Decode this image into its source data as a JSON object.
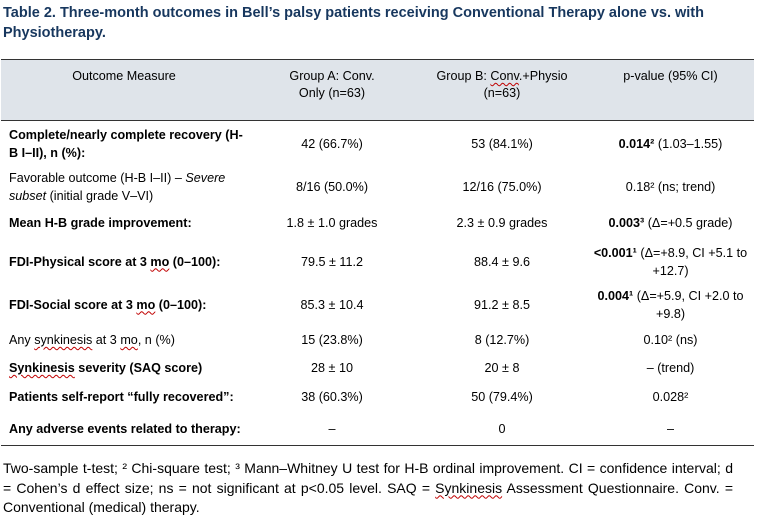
{
  "title": "Table 2. Three-month outcomes in Bell’s palsy patients receiving Conventional Therapy alone vs. with Physiotherapy.",
  "columns": {
    "measure": "Outcome Measure",
    "group_a_line1": "Group A: Conv.",
    "group_a_line2": "Only (n=63)",
    "group_b_line1_pre": "Group B: ",
    "group_b_line1_sq": "Conv",
    "group_b_line1_post": ".+Physio",
    "group_b_line2": "(n=63)",
    "pvalue": "p-value (95% CI)"
  },
  "rows": {
    "r1": {
      "measure": "Complete/nearly complete recovery (H-B I–II), n (%):",
      "a": "42 (66.7%)",
      "b": "53 (84.1%)",
      "p_bold": "0.014²",
      "p_rest": " (1.03–1.55)"
    },
    "r2": {
      "measure_pre": "Favorable outcome (H-B I–II) – ",
      "measure_em1": "Severe",
      "measure_em2": "subset",
      "measure_post": " (initial grade V–VI)",
      "a": "8/16 (50.0%)",
      "b": "12/16 (75.0%)",
      "p_rest": "0.18² (ns; trend)"
    },
    "r3": {
      "measure": "Mean H-B grade improvement:",
      "a": "1.8 ± 1.0 grades",
      "b": "2.3 ± 0.9 grades",
      "p_bold": "0.003³",
      "p_rest": " (Δ=+0.5 grade)"
    },
    "r4": {
      "measure_pre": "FDI-Physical score at 3 ",
      "measure_sq": "mo",
      "measure_post": " (0–100):",
      "a": "79.5 ± 11.2",
      "b": "88.4 ± 9.6",
      "p_bold": "<0.001¹",
      "p_rest1": " (Δ=+8.9, CI +5.1 to",
      "p_rest2": "+12.7)"
    },
    "r5": {
      "measure_pre": "FDI-Social score at 3 ",
      "measure_sq": "mo",
      "measure_post": " (0–100):",
      "a": "85.3 ± 10.4",
      "b": "91.2 ± 8.5",
      "p_bold": "0.004¹",
      "p_rest1": " (Δ=+5.9, CI +2.0 to",
      "p_rest2": "+9.8)"
    },
    "r6": {
      "measure_pre": "Any ",
      "measure_sq1": "synkinesis",
      "measure_mid": " at 3 ",
      "measure_sq2": "mo",
      "measure_post": ", n (%)",
      "a": "15 (23.8%)",
      "b": "8 (12.7%)",
      "p_rest": "0.10² (ns)"
    },
    "r7": {
      "measure_sq": "Synkinesis",
      "measure_post": " severity (SAQ score)",
      "a": "28 ± 10",
      "b": "20 ± 8",
      "p_rest": "– (trend)"
    },
    "r8": {
      "measure": "Patients self-report “fully recovered”:",
      "a": "38 (60.3%)",
      "b": "50 (79.4%)",
      "p_rest": "0.028²"
    },
    "r9": {
      "measure": "Any adverse events related to therapy:",
      "a": "–",
      "b": "0",
      "p_rest": "–"
    }
  },
  "footer": {
    "pre": "Two-sample t-test; ² Chi-square test; ³ Mann–Whitney U test for H-B ordinal improvement. CI = confidence interval; d = Cohen’s d effect size; ns = not significant at p<0.05 level. SAQ = ",
    "sq": "Synkinesis",
    "post": " Assessment Questionnaire. Conv. = Conventional (medical) therapy."
  },
  "colors": {
    "title": "#17375e",
    "header_bg": "#dfe4ea",
    "spell_underline": "#c00000"
  }
}
